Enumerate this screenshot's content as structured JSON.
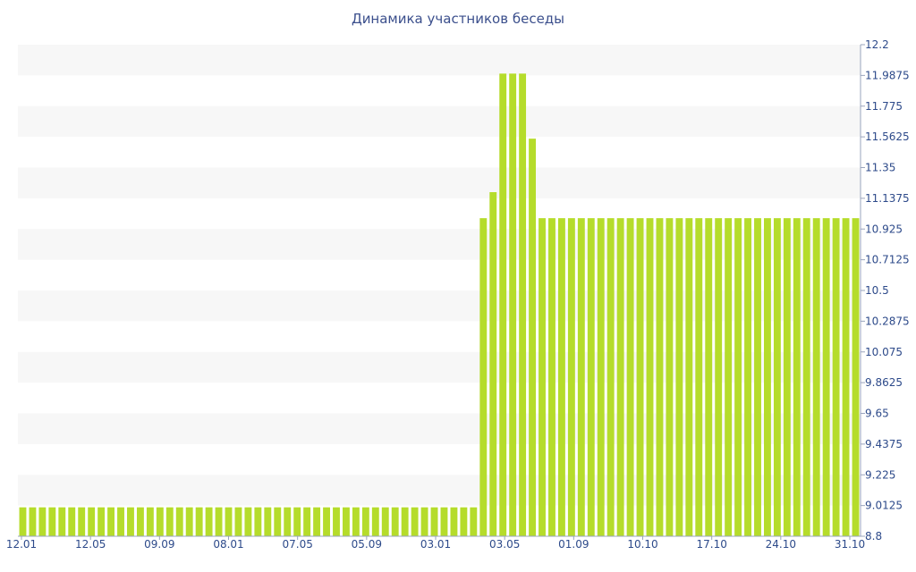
{
  "chart_data": {
    "type": "bar",
    "title": "Динамика участников беседы",
    "xlabel": "",
    "ylabel": "",
    "ylim": [
      8.8,
      12.2
    ],
    "grid": "horizontal bands",
    "bar_color": "#b5dc2b",
    "band_color": "#f7f7f7",
    "axis_text_color": "#2d4a8a",
    "yticks": [
      "12.2",
      "11.9875",
      "11.775",
      "11.5625",
      "11.35",
      "11.1375",
      "10.925",
      "10.7125",
      "10.5",
      "10.2875",
      "10.075",
      "9.8625",
      "9.65",
      "9.4375",
      "9.225",
      "9.0125",
      "8.8"
    ],
    "xticks": [
      "12.01",
      "12.05",
      "09.09",
      "08.01",
      "07.05",
      "05.09",
      "03.01",
      "03.05",
      "01.09",
      "10.10",
      "17.10",
      "24.10",
      "31.10"
    ],
    "values": [
      9,
      9,
      9,
      9,
      9,
      9,
      9,
      9,
      9,
      9,
      9,
      9,
      9,
      9,
      9,
      9,
      9,
      9,
      9,
      9,
      9,
      9,
      9,
      9,
      9,
      9,
      9,
      9,
      9,
      9,
      9,
      9,
      9,
      9,
      9,
      9,
      9,
      9,
      9,
      9,
      9,
      9,
      9,
      9,
      9,
      9,
      9,
      11,
      11.18,
      12,
      12,
      12,
      11.55,
      11,
      11,
      11,
      11,
      11,
      11,
      11,
      11,
      11,
      11,
      11,
      11,
      11,
      11,
      11,
      11,
      11,
      11,
      11,
      11,
      11,
      11,
      11,
      11,
      11,
      11,
      11,
      11,
      11,
      11,
      11,
      11,
      11
    ]
  }
}
